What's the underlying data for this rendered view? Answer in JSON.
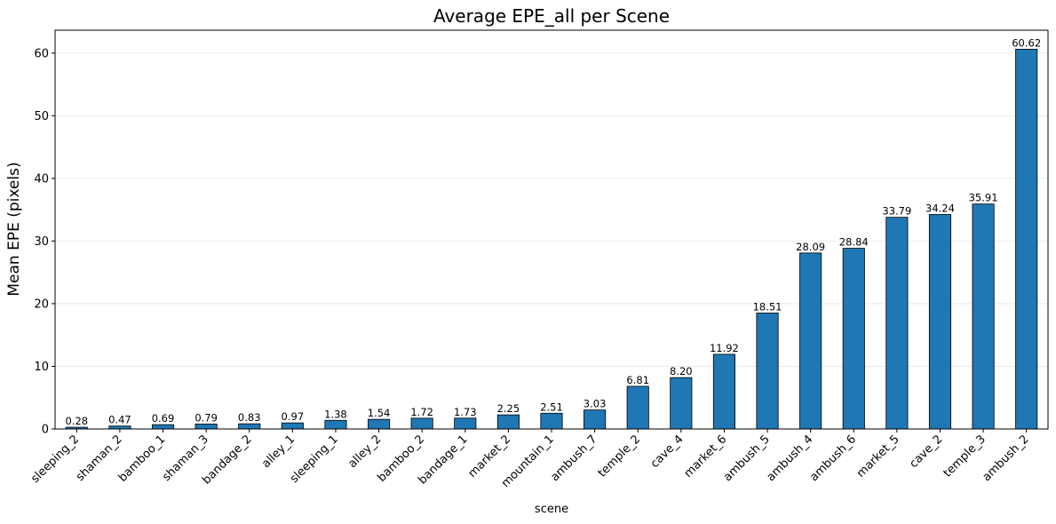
{
  "chart_data": {
    "type": "bar",
    "title": "Average EPE_all per Scene",
    "xlabel": "scene",
    "ylabel": "Mean EPE (pixels)",
    "ylim": [
      0,
      63.651
    ],
    "yticks": [
      0,
      10,
      20,
      30,
      40,
      50,
      60
    ],
    "grid": "y",
    "bar_color": "#1f77b4",
    "edge_color": "#000000",
    "categories": [
      "sleeping_2",
      "shaman_2",
      "bamboo_1",
      "shaman_3",
      "bandage_2",
      "alley_1",
      "sleeping_1",
      "alley_2",
      "bamboo_2",
      "bandage_1",
      "market_2",
      "mountain_1",
      "ambush_7",
      "temple_2",
      "cave_4",
      "market_6",
      "ambush_5",
      "ambush_4",
      "ambush_6",
      "market_5",
      "cave_2",
      "temple_3",
      "ambush_2"
    ],
    "values": [
      0.28,
      0.47,
      0.69,
      0.79,
      0.83,
      0.97,
      1.38,
      1.54,
      1.72,
      1.73,
      2.25,
      2.51,
      3.03,
      6.81,
      8.2,
      11.92,
      18.51,
      28.09,
      28.84,
      33.79,
      34.24,
      35.91,
      60.62
    ],
    "data_labels": [
      "0.28",
      "0.47",
      "0.69",
      "0.79",
      "0.83",
      "0.97",
      "1.38",
      "1.54",
      "1.72",
      "1.73",
      "2.25",
      "2.51",
      "3.03",
      "6.81",
      "8.20",
      "11.92",
      "18.51",
      "28.09",
      "28.84",
      "33.79",
      "34.24",
      "35.91",
      "60.62"
    ]
  }
}
